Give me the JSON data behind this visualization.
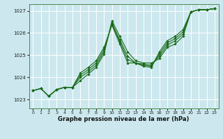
{
  "xlabel": "Graphe pression niveau de la mer (hPa)",
  "bg_color": "#cce8ee",
  "grid_color": "#ffffff",
  "line_color": "#1a6b1a",
  "xlim": [
    -0.5,
    23.5
  ],
  "ylim": [
    1022.6,
    1027.3
  ],
  "yticks": [
    1023,
    1024,
    1025,
    1026,
    1027
  ],
  "xticks": [
    0,
    1,
    2,
    3,
    4,
    5,
    6,
    7,
    8,
    9,
    10,
    11,
    12,
    13,
    14,
    15,
    16,
    17,
    18,
    19,
    20,
    21,
    22,
    23
  ],
  "series": [
    [
      1023.4,
      1023.5,
      1023.15,
      1023.45,
      1023.55,
      1023.55,
      1023.85,
      1024.15,
      1024.45,
      1025.05,
      1026.55,
      1025.85,
      1025.15,
      1024.75,
      1024.65,
      1024.65,
      1024.85,
      1025.35,
      1025.5,
      1025.85,
      1026.95,
      1027.05,
      1027.05,
      1027.1
    ],
    [
      1023.4,
      1023.5,
      1023.15,
      1023.45,
      1023.55,
      1023.55,
      1024.0,
      1024.25,
      1024.55,
      1025.15,
      1026.45,
      1025.7,
      1024.95,
      1024.65,
      1024.6,
      1024.55,
      1024.95,
      1025.45,
      1025.65,
      1025.95,
      1026.95,
      1027.05,
      1027.05,
      1027.1
    ],
    [
      1023.4,
      1023.5,
      1023.15,
      1023.45,
      1023.55,
      1023.55,
      1024.1,
      1024.35,
      1024.65,
      1025.25,
      1026.4,
      1025.6,
      1024.8,
      1024.65,
      1024.55,
      1024.5,
      1025.05,
      1025.55,
      1025.75,
      1026.05,
      1026.95,
      1027.05,
      1027.05,
      1027.1
    ],
    [
      1023.4,
      1023.5,
      1023.15,
      1023.45,
      1023.55,
      1023.55,
      1024.2,
      1024.45,
      1024.75,
      1025.35,
      1026.35,
      1025.5,
      1024.65,
      1024.65,
      1024.5,
      1024.45,
      1025.15,
      1025.65,
      1025.85,
      1026.15,
      1026.95,
      1027.05,
      1027.05,
      1027.1
    ]
  ]
}
